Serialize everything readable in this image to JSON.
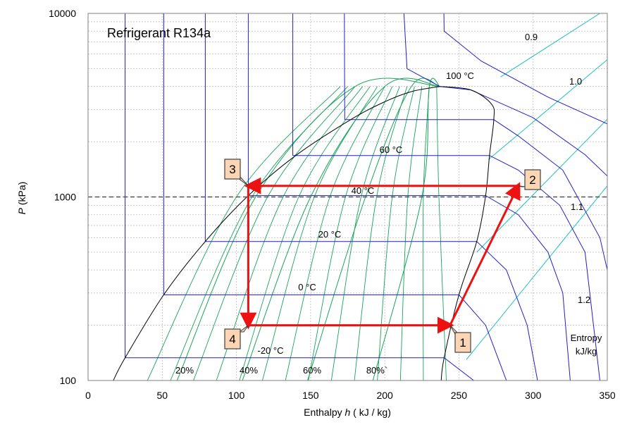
{
  "chart_data": {
    "type": "line",
    "title": "Refrigerant R134a",
    "xlabel_prefix": "Enthalpy ",
    "xlabel_var": "h",
    "xlabel_suffix": " ( kJ / kg)",
    "ylabel_var": "P",
    "ylabel_suffix": " (kPa)",
    "xlim": [
      0,
      350
    ],
    "ylim": [
      100,
      10000
    ],
    "y_scale": "log",
    "x_ticks": [
      0,
      50,
      100,
      150,
      200,
      250,
      300,
      350
    ],
    "y_tick_labels": [
      "100",
      "1000",
      "10000"
    ],
    "y_tick_values": [
      100,
      1000,
      10000
    ],
    "grid": true,
    "colors": {
      "saturation_dome": "#000000",
      "isotherm": "#1f1fcc",
      "quality_line": "#19a35a",
      "isentrope": "#1fbfbf",
      "cycle": "#ee1111",
      "state_box_fill": "#fcd5b5",
      "reference_line": "#555555"
    },
    "saturation_dome": {
      "liquid": [
        [
          17,
          100
        ],
        [
          25,
          133
        ],
        [
          51,
          293
        ],
        [
          79,
          572
        ],
        [
          108,
          1017
        ],
        [
          140,
          1682
        ],
        [
          177,
          2637
        ],
        [
          200,
          3300
        ],
        [
          218,
          3750
        ],
        [
          237,
          4000
        ]
      ],
      "vapor": [
        [
          237,
          4000
        ],
        [
          258,
          3830
        ],
        [
          272,
          3200
        ],
        [
          273.5,
          2637
        ],
        [
          270.6,
          1682
        ],
        [
          268,
          1017
        ],
        [
          262,
          572
        ],
        [
          250,
          293
        ],
        [
          240,
          133
        ],
        [
          238,
          100
        ]
      ]
    },
    "isotherms": [
      {
        "label": "-20 °C",
        "points": [
          [
            25,
            800000
          ],
          [
            25,
            133
          ],
          [
            240,
            133
          ],
          [
            260,
            100
          ]
        ]
      },
      {
        "label": "0 °C",
        "points": [
          [
            51,
            800000
          ],
          [
            51,
            293
          ],
          [
            250,
            293
          ],
          [
            268,
            200
          ],
          [
            282,
            100
          ]
        ]
      },
      {
        "label": "20 °C",
        "points": [
          [
            79,
            800000
          ],
          [
            79,
            572
          ],
          [
            262,
            572
          ],
          [
            282,
            400
          ],
          [
            296,
            200
          ],
          [
            303,
            100
          ]
        ]
      },
      {
        "label": "40 °C",
        "points": [
          [
            108,
            800000
          ],
          [
            108,
            1017
          ],
          [
            268,
            1017
          ],
          [
            290,
            800
          ],
          [
            310,
            500
          ],
          [
            320,
            300
          ],
          [
            325,
            100
          ]
        ]
      },
      {
        "label": "60 °C",
        "points": [
          [
            138,
            800000
          ],
          [
            138,
            1682
          ],
          [
            270.6,
            1682
          ],
          [
            290,
            1400
          ],
          [
            318,
            900
          ],
          [
            335,
            500
          ],
          [
            345,
            100
          ]
        ]
      },
      {
        "label": "",
        "points": [
          [
            172,
            800000
          ],
          [
            173,
            2637
          ],
          [
            273.5,
            2637
          ],
          [
            290,
            2150
          ],
          [
            320,
            1400
          ],
          [
            345,
            600
          ],
          [
            350,
            400
          ]
        ]
      },
      {
        "label": "100 °C",
        "points": [
          [
            200,
            800000
          ],
          [
            215,
            5000
          ],
          [
            237,
            4000
          ],
          [
            258,
            3830
          ],
          [
            300,
            2700
          ],
          [
            335,
            1700
          ],
          [
            350,
            1300
          ]
        ]
      },
      {
        "label": "",
        "points": [
          [
            237,
            800000
          ],
          [
            240,
            8000
          ],
          [
            265,
            5500
          ],
          [
            310,
            3500
          ],
          [
            350,
            2500
          ]
        ]
      }
    ],
    "quality_lines": [
      {
        "label": "20%",
        "points": [
          [
            60,
            100
          ],
          [
            113,
            1000
          ],
          [
            180,
            4000
          ],
          [
            237,
            4000
          ]
        ]
      },
      {
        "label": "40%",
        "points": [
          [
            104,
            100
          ],
          [
            150,
            1000
          ],
          [
            200,
            4000
          ],
          [
            237,
            4000
          ]
        ]
      },
      {
        "label": "60%",
        "points": [
          [
            148,
            100
          ],
          [
            187,
            1000
          ],
          [
            218,
            4000
          ],
          [
            237,
            4000
          ]
        ]
      },
      {
        "label": "80%`",
        "points": [
          [
            192,
            100
          ],
          [
            225,
            1000
          ],
          [
            230,
            4000
          ],
          [
            237,
            4000
          ]
        ]
      }
    ],
    "isentropes": [
      {
        "label": "0.9",
        "points": [
          [
            278,
            4500
          ],
          [
            345,
            10000
          ]
        ]
      },
      {
        "label": "1.0",
        "points": [
          [
            270,
            1600
          ],
          [
            350,
            5600
          ]
        ]
      },
      {
        "label": "1.1",
        "points": [
          [
            262,
            500
          ],
          [
            350,
            2650
          ]
        ]
      },
      {
        "label": "1.2",
        "points": [
          [
            255,
            130
          ],
          [
            350,
            1150
          ]
        ]
      }
    ],
    "reference_line_y": 1000,
    "isentrope_caption": [
      "Entropy",
      "kJ/kg"
    ],
    "cycle": {
      "points": [
        [
          244,
          200
        ],
        [
          290,
          1150
        ],
        [
          108,
          1150
        ],
        [
          108,
          200
        ],
        [
          244,
          200
        ]
      ],
      "states": [
        {
          "label": "1",
          "h": 244,
          "P": 200
        },
        {
          "label": "2",
          "h": 290,
          "P": 1150
        },
        {
          "label": "3",
          "h": 108,
          "P": 1150
        },
        {
          "label": "4",
          "h": 108,
          "P": 200
        }
      ]
    }
  }
}
